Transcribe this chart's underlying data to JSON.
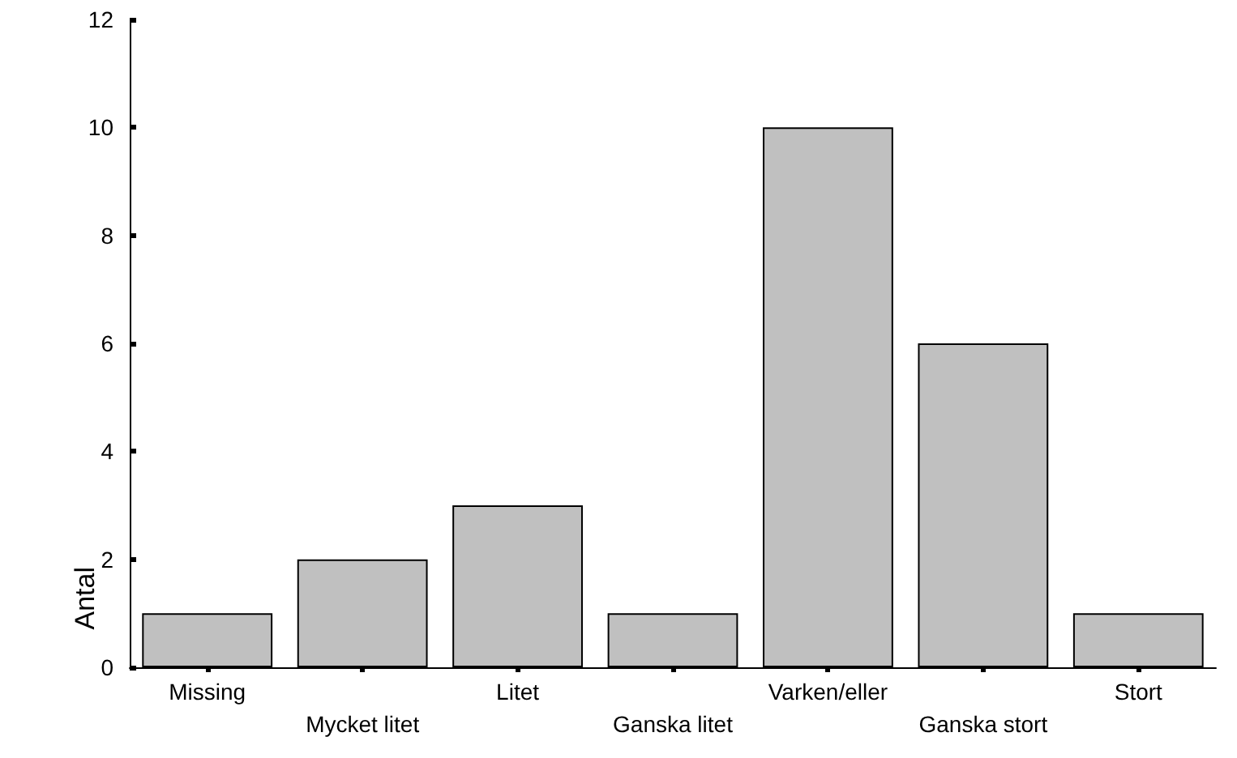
{
  "chart_data": {
    "type": "bar",
    "ylabel": "Antal",
    "categories": [
      "Missing",
      "Mycket litet",
      "Litet",
      "Ganska litet",
      "Varken/eller",
      "Ganska stort",
      "Stort"
    ],
    "values": [
      1,
      2,
      3,
      1,
      10,
      6,
      1
    ],
    "color": "#c0c0c0",
    "ylim": [
      0,
      12
    ],
    "yticks": [
      0,
      2,
      4,
      6,
      8,
      10,
      12
    ],
    "grid": false
  }
}
